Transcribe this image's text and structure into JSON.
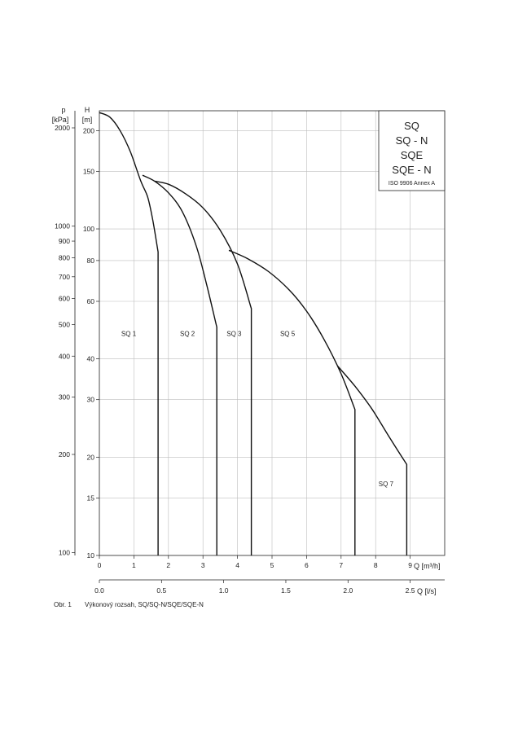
{
  "chart_data": {
    "type": "line",
    "legend": {
      "lines": [
        "SQ",
        "SQ - N",
        "SQE",
        "SQE - N"
      ],
      "note": "ISO 9906 Annex A"
    },
    "left_axis_p": {
      "label_top": "p",
      "label_unit": "[kPa]",
      "ticks": [
        "100",
        "200",
        "300",
        "400",
        "500",
        "600",
        "700",
        "800",
        "900",
        "1000",
        "2000"
      ],
      "tick_values": [
        100,
        200,
        300,
        400,
        500,
        600,
        700,
        800,
        900,
        1000,
        2000
      ]
    },
    "left_axis_h": {
      "label_top": "H",
      "label_unit": "[m]",
      "scale": "log",
      "range": [
        10,
        230
      ],
      "ticks": [
        "10",
        "15",
        "20",
        "30",
        "40",
        "60",
        "80",
        "100",
        "150",
        "200"
      ],
      "tick_values": [
        10,
        15,
        20,
        30,
        40,
        60,
        80,
        100,
        150,
        200
      ]
    },
    "x_axis_q_m3h": {
      "label": "Q [m³/h]",
      "range": [
        0,
        10
      ],
      "ticks": [
        "0",
        "1",
        "2",
        "3",
        "4",
        "5",
        "6",
        "7",
        "8",
        "9"
      ],
      "tick_values": [
        0,
        1,
        2,
        3,
        4,
        5,
        6,
        7,
        8,
        9
      ]
    },
    "x_axis_q_ls": {
      "label": "Q [l/s]",
      "ticks": [
        "0.0",
        "0.5",
        "1.0",
        "1.5",
        "2.0",
        "2.5"
      ],
      "tick_values": [
        0.0,
        0.5,
        1.0,
        1.5,
        2.0,
        2.5
      ]
    },
    "grid": true,
    "series": [
      {
        "name": "SQ 1",
        "label_pos": [
          0.85,
          47
        ],
        "x": [
          0,
          0.3,
          0.6,
          0.9,
          1.2,
          1.4,
          1.55,
          1.7,
          1.7
        ],
        "y": [
          227,
          220,
          200,
          172,
          140,
          125,
          106,
          85,
          10
        ]
      },
      {
        "name": "SQ 2",
        "label_pos": [
          2.55,
          47
        ],
        "x": [
          1.25,
          1.6,
          2.0,
          2.4,
          2.8,
          3.1,
          3.4,
          3.4
        ],
        "y": [
          146,
          140,
          129,
          113,
          89,
          68,
          50,
          10
        ]
      },
      {
        "name": "SQ 3",
        "label_pos": [
          3.9,
          47
        ],
        "x": [
          1.6,
          2.0,
          2.5,
          3.0,
          3.5,
          4.0,
          4.4,
          4.4
        ],
        "y": [
          140,
          137,
          128,
          116,
          99,
          78,
          57,
          10
        ]
      },
      {
        "name": "SQ 5",
        "label_pos": [
          5.45,
          47
        ],
        "x": [
          3.75,
          4.3,
          4.9,
          5.5,
          6.0,
          6.5,
          7.0,
          7.4,
          7.4
        ],
        "y": [
          86,
          81,
          74,
          65,
          56,
          46,
          36,
          28,
          10
        ]
      },
      {
        "name": "SQ 7",
        "label_pos": [
          8.3,
          16.3
        ],
        "x": [
          6.9,
          7.4,
          7.9,
          8.4,
          8.9,
          8.9
        ],
        "y": [
          38,
          33,
          28,
          23,
          19,
          10
        ]
      }
    ]
  },
  "caption": {
    "number": "Obr. 1",
    "text": "Výkonový rozsah, SQ/SQ-N/SQE/SQE-N"
  }
}
